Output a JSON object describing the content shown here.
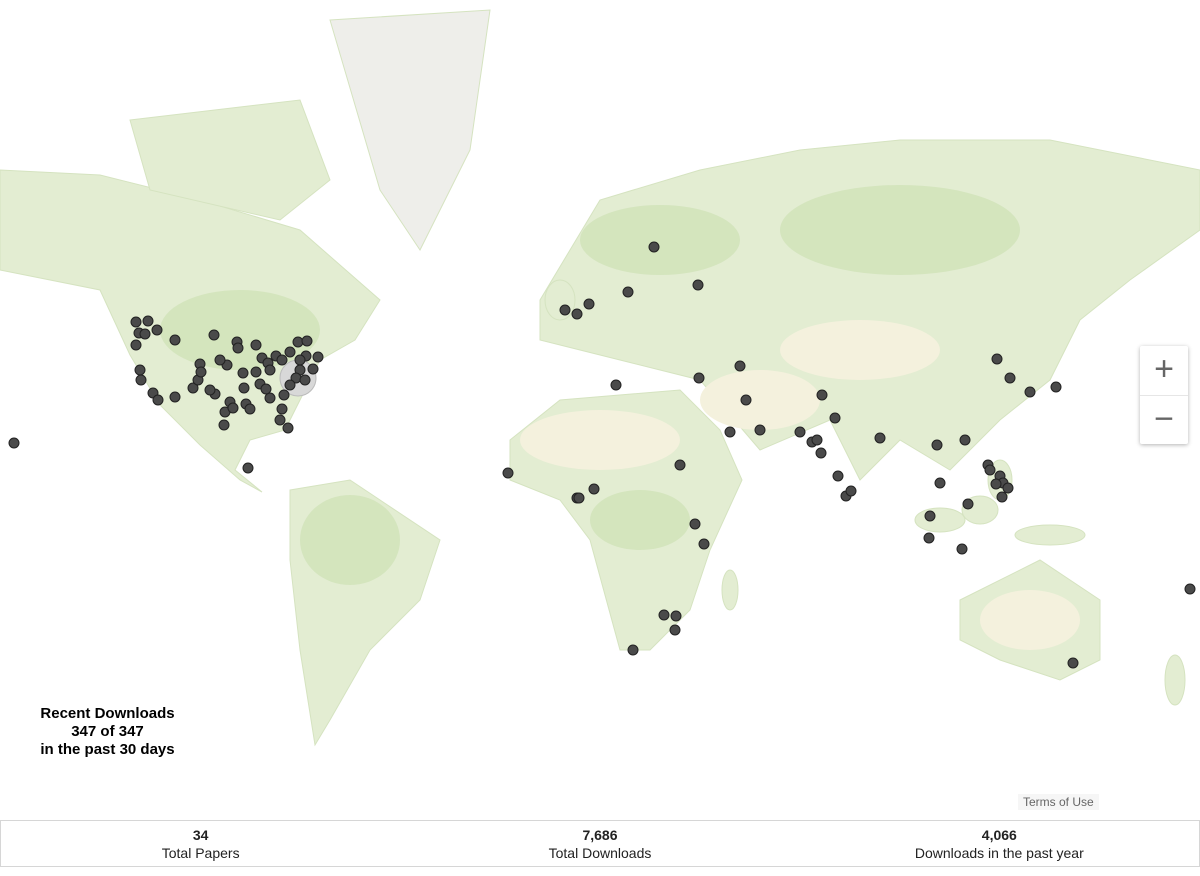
{
  "overlay": {
    "title": "Recent Downloads",
    "count": "347 of 347",
    "period": "in the past 30 days"
  },
  "map": {
    "zoom_in": "+",
    "zoom_out": "−",
    "terms": "Terms of Use"
  },
  "stats": [
    {
      "value": "34",
      "label": "Total Papers"
    },
    {
      "value": "7,686",
      "label": "Total Downloads"
    },
    {
      "value": "4,066",
      "label": "Downloads in the past year"
    }
  ]
}
